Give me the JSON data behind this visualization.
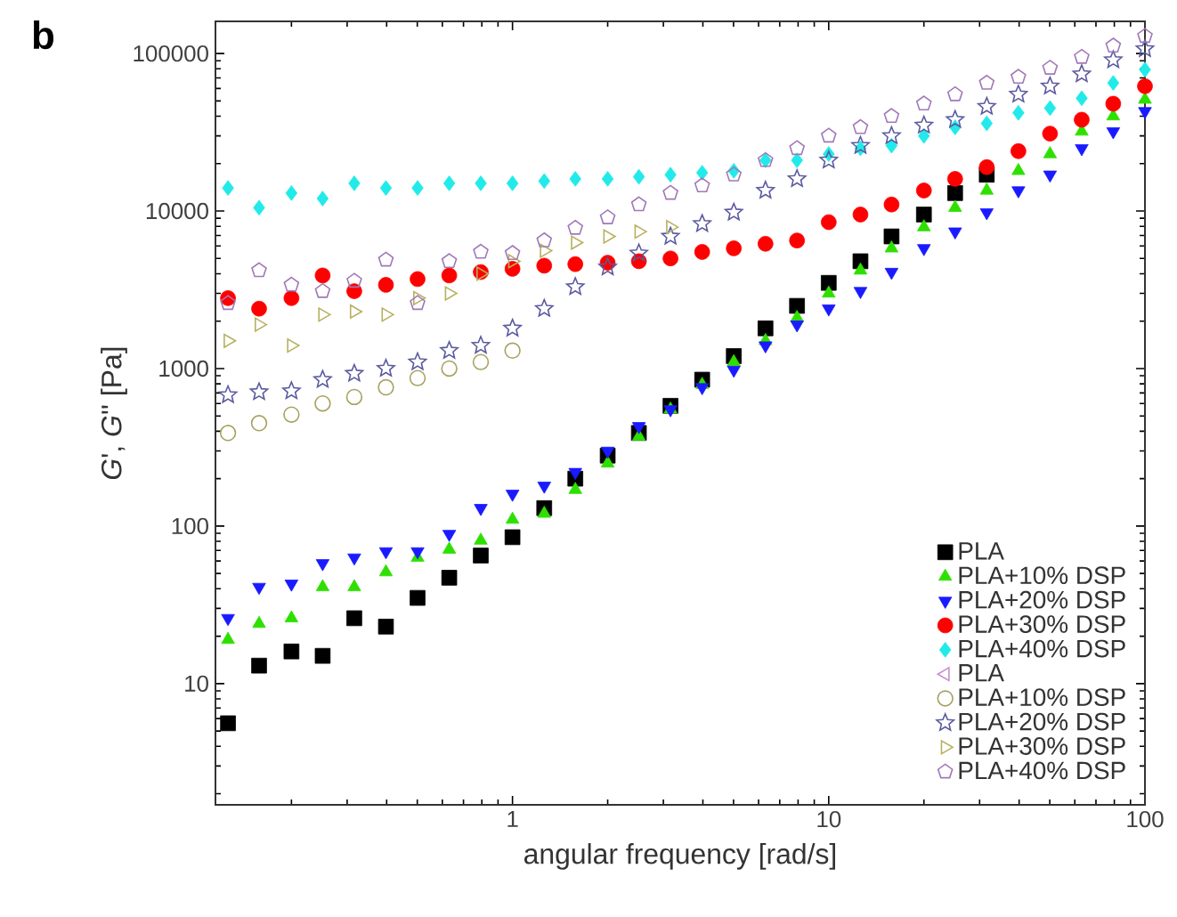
{
  "chart_data": {
    "type": "scatter",
    "xlabel": "angular frequency [rad/s]",
    "ylabel": "*G*', *G*'' [Pa]",
    "annotations": [
      "b"
    ],
    "log": "xy",
    "xlim": [
      0.115,
      100
    ],
    "xticks": [
      1,
      10,
      100
    ],
    "ylim": [
      1.7,
      160000
    ],
    "yticks": [
      10,
      100,
      1000,
      10000,
      100000
    ],
    "legend": "bottom right",
    "x": [
      0.126,
      0.158,
      0.2,
      0.251,
      0.316,
      0.398,
      0.501,
      0.631,
      0.794,
      1,
      1.26,
      1.58,
      2,
      2.51,
      3.16,
      3.98,
      5.01,
      6.31,
      7.94,
      10,
      12.6,
      15.8,
      20,
      25.1,
      31.6,
      39.8,
      50.1,
      63.1,
      79.4,
      100
    ],
    "series": [
      {
        "name": "PLA",
        "color": "#000000",
        "marker": "square",
        "values": [
          5.6,
          13,
          16,
          15,
          26,
          23,
          35,
          47,
          65,
          85,
          130,
          200,
          280,
          390,
          580,
          850,
          1200,
          1800,
          2500,
          3500,
          4800,
          6900,
          9500,
          13000,
          17000,
          null,
          null,
          null,
          null,
          null
        ]
      },
      {
        "name": "PLA+10% DSP",
        "color": "#2ee000",
        "marker": "triangle",
        "values": [
          19,
          24,
          26,
          41,
          41,
          51,
          63,
          71,
          81,
          110,
          120,
          170,
          250,
          370,
          550,
          790,
          1100,
          1500,
          2100,
          3000,
          4200,
          5800,
          7900,
          10500,
          13500,
          18000,
          23000,
          32000,
          40000,
          51000
        ]
      },
      {
        "name": "PLA+20% DSP",
        "color": "#1a1aff",
        "marker": "triangle",
        "values": [
          26,
          41,
          43,
          58,
          63,
          69,
          69,
          89,
          130,
          160,
          180,
          220,
          300,
          430,
          550,
          760,
          980,
          1400,
          1900,
          2400,
          3100,
          4100,
          5800,
          7400,
          9800,
          13500,
          17000,
          25000,
          32000,
          43000
        ]
      },
      {
        "name": "PLA+30% DSP",
        "color": "#ff0000",
        "marker": "circle",
        "values": [
          2800,
          2400,
          2800,
          3900,
          3100,
          3400,
          3700,
          3900,
          4100,
          4300,
          4500,
          4600,
          4700,
          4800,
          5000,
          5500,
          5800,
          6200,
          6500,
          8500,
          9500,
          11000,
          13500,
          16000,
          19000,
          24000,
          31000,
          38000,
          48000,
          62000
        ]
      },
      {
        "name": "PLA+40% DSP",
        "color": "#22eaea",
        "marker": "diamond",
        "values": [
          14000,
          10500,
          13000,
          12000,
          15000,
          14000,
          14000,
          15000,
          15000,
          15000,
          15500,
          16000,
          16000,
          16500,
          17000,
          17500,
          18000,
          21000,
          21000,
          23000,
          25000,
          26000,
          30000,
          34000,
          36000,
          42000,
          45000,
          52000,
          65000,
          79000
        ]
      },
      {
        "name": "PLA",
        "color": "#c890d0",
        "marker": "triangle",
        "values": [
          null,
          null,
          null,
          null,
          null,
          null,
          null,
          null,
          null,
          null,
          null,
          null,
          null,
          null,
          null,
          null,
          null,
          null,
          null,
          null,
          null,
          null,
          null,
          null,
          null,
          null,
          null,
          null,
          null,
          null
        ]
      },
      {
        "name": "PLA+10% DSP",
        "color": "#a8a060",
        "marker": "circle",
        "values": [
          390,
          450,
          510,
          600,
          660,
          760,
          870,
          1000,
          1100,
          1300,
          null,
          null,
          null,
          null,
          null,
          null,
          null,
          null,
          null,
          null,
          null,
          null,
          null,
          null,
          null,
          null,
          null,
          null,
          null,
          null
        ]
      },
      {
        "name": "PLA+20% DSP",
        "color": "#5a5aa0",
        "marker": "star",
        "values": [
          680,
          710,
          720,
          850,
          930,
          1000,
          1100,
          1300,
          1400,
          1800,
          2400,
          3300,
          4400,
          5400,
          6900,
          8300,
          9800,
          13500,
          16000,
          21000,
          26000,
          30000,
          35000,
          38000,
          46000,
          55000,
          62000,
          74000,
          91000,
          107000
        ]
      },
      {
        "name": "PLA+30% DSP",
        "color": "#b8b060",
        "marker": "triangle",
        "values": [
          1500,
          1900,
          1400,
          2200,
          2300,
          2200,
          2800,
          3000,
          4000,
          4800,
          5600,
          6300,
          6900,
          7400,
          7900,
          null,
          null,
          null,
          null,
          null,
          null,
          null,
          null,
          null,
          null,
          null,
          null,
          null,
          null,
          null
        ]
      },
      {
        "name": "PLA+40% DSP",
        "color": "#a078b8",
        "values": [
          2600,
          4200,
          3400,
          3100,
          3600,
          4900,
          2600,
          4800,
          5500,
          5400,
          6500,
          7800,
          9100,
          11000,
          13000,
          14500,
          17000,
          21000,
          25000,
          30000,
          34000,
          40000,
          48000,
          55000,
          65000,
          71000,
          81000,
          95000,
          112000,
          129000
        ]
      }
    ]
  }
}
